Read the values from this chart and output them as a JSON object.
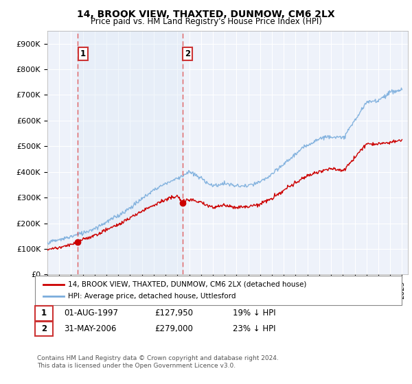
{
  "title": "14, BROOK VIEW, THAXTED, DUNMOW, CM6 2LX",
  "subtitle": "Price paid vs. HM Land Registry's House Price Index (HPI)",
  "legend_line1": "14, BROOK VIEW, THAXTED, DUNMOW, CM6 2LX (detached house)",
  "legend_line2": "HPI: Average price, detached house, Uttlesford",
  "footnote1": "Contains HM Land Registry data © Crown copyright and database right 2024.",
  "footnote2": "This data is licensed under the Open Government Licence v3.0.",
  "sale1_label": "1",
  "sale1_date": "01-AUG-1997",
  "sale1_price": "£127,950",
  "sale1_hpi": "19% ↓ HPI",
  "sale2_label": "2",
  "sale2_date": "31-MAY-2006",
  "sale2_price": "£279,000",
  "sale2_hpi": "23% ↓ HPI",
  "red_color": "#cc0000",
  "blue_color": "#7aaddc",
  "blue_fill": "#dce9f5",
  "dashed_color": "#e05050",
  "background_plot": "#eef2fa",
  "grid_color": "#ffffff",
  "ylim": [
    0,
    950000
  ],
  "yticks": [
    0,
    100000,
    200000,
    300000,
    400000,
    500000,
    600000,
    700000,
    800000,
    900000
  ],
  "ytick_labels": [
    "£0",
    "£100K",
    "£200K",
    "£300K",
    "£400K",
    "£500K",
    "£600K",
    "£700K",
    "£800K",
    "£900K"
  ],
  "xlim_start": 1995.0,
  "xlim_end": 2025.5,
  "sale1_x": 1997.58,
  "sale1_y": 127950,
  "sale2_x": 2006.42,
  "sale2_y": 279000
}
